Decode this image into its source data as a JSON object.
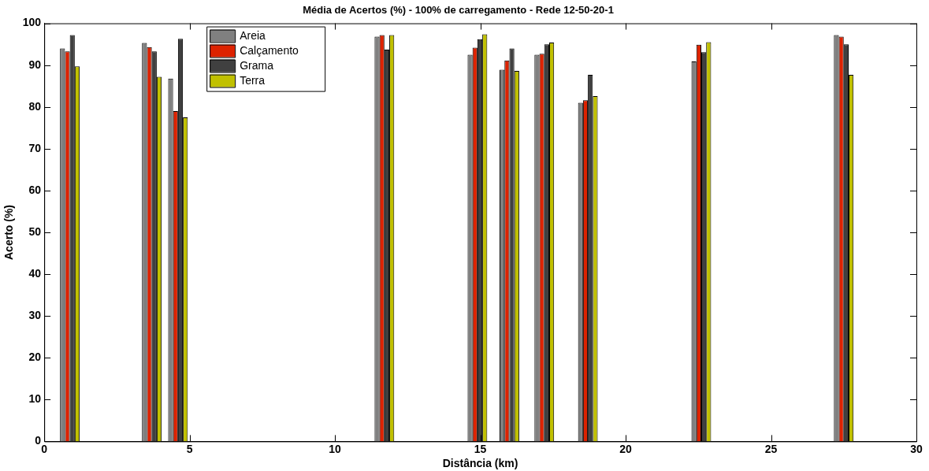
{
  "chart_data": {
    "type": "bar",
    "title": "Média de Acertos (%) - 100% de carregamento - Rede 12-50-20-1",
    "xlabel": "Distância (km)",
    "ylabel": "Acerto (%)",
    "x": [
      0.88,
      3.7,
      4.6,
      11.7,
      14.9,
      16.0,
      17.2,
      18.7,
      22.6,
      27.5
    ],
    "series": [
      {
        "name": "Areia",
        "color": "#808080",
        "values": [
          94,
          95.3,
          86.8,
          96.8,
          92.5,
          88.9,
          92.5,
          81,
          90.9,
          97.2
        ]
      },
      {
        "name": "Calçamento",
        "color": "#dd2200",
        "values": [
          93.3,
          94.3,
          79,
          97.2,
          94.2,
          91.1,
          92.7,
          81.6,
          94.9,
          96.8
        ]
      },
      {
        "name": "Grama",
        "color": "#404040",
        "values": [
          97.2,
          93.3,
          96.3,
          93.7,
          96.2,
          94,
          95,
          87.7,
          93.1,
          95
        ]
      },
      {
        "name": "Terra",
        "color": "#c0c000",
        "values": [
          89.7,
          87.2,
          77.5,
          97.2,
          97.4,
          88.6,
          95.4,
          82.6,
          95.5,
          87.7
        ]
      }
    ],
    "xlim": [
      0,
      30
    ],
    "xticks": [
      0,
      5,
      10,
      15,
      20,
      25,
      30
    ],
    "ylim": [
      0,
      100
    ],
    "yticks": [
      0,
      10,
      20,
      30,
      40,
      50,
      60,
      70,
      80,
      90,
      100
    ],
    "grid": false,
    "legend": "top left"
  }
}
